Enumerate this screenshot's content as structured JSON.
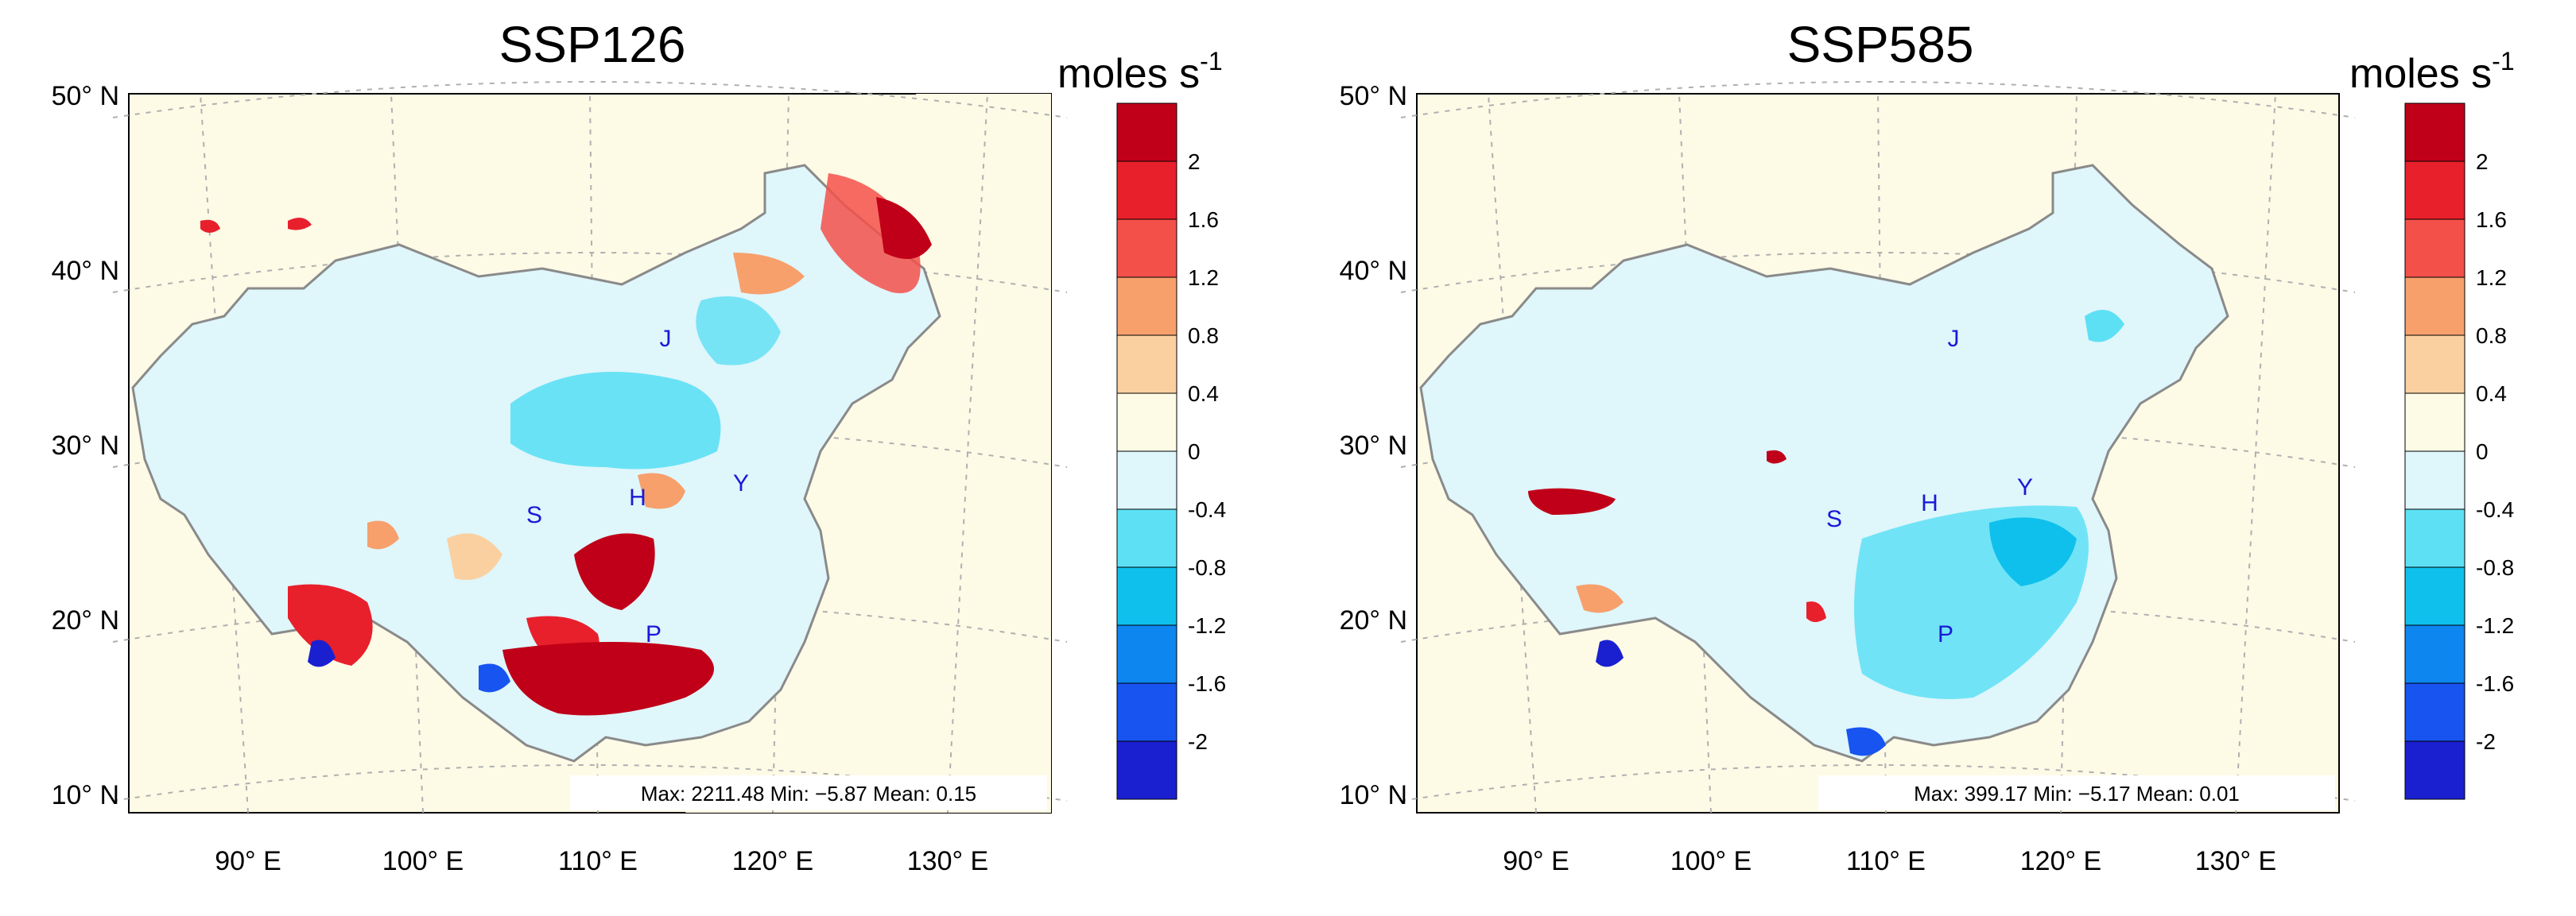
{
  "unit_base": "moles s",
  "unit_exp": "-1",
  "colors": {
    "ocean": "#fefbe6",
    "land": "#fdfae6",
    "border": "#8a8a8a",
    "coast": "#000000",
    "grid": "#aaaaaa"
  },
  "colorbar": {
    "labels": [
      "2",
      "1.6",
      "1.2",
      "0.8",
      "0.4",
      "0",
      "-0.4",
      "-0.8",
      "-1.2",
      "-1.6",
      "-2"
    ],
    "colors": [
      "#c00018",
      "#e8202c",
      "#f4504a",
      "#f7a06c",
      "#fbd0a0",
      "#fdfbe6",
      "#dff6fb",
      "#5de0f4",
      "#10c0ec",
      "#0d86f0",
      "#1854f0",
      "#1a20d0"
    ]
  },
  "lat_labels": [
    "50° N",
    "40° N",
    "30° N",
    "20° N",
    "10° N"
  ],
  "lon_labels": [
    "90° E",
    "100° E",
    "110° E",
    "120° E",
    "130° E"
  ],
  "maps": [
    {
      "title": "SSP126",
      "stats": "Max: 2211.48  Min: −5.87  Mean: 0.15",
      "cities": [
        {
          "label": "J"
        },
        {
          "label": "S"
        },
        {
          "label": "H"
        },
        {
          "label": "Y"
        },
        {
          "label": "P"
        }
      ]
    },
    {
      "title": "SSP585",
      "stats": "Max: 399.17  Min: −5.17  Mean: 0.01",
      "cities": [
        {
          "label": "J"
        },
        {
          "label": "S"
        },
        {
          "label": "H"
        },
        {
          "label": "Y"
        },
        {
          "label": "P"
        }
      ]
    }
  ]
}
